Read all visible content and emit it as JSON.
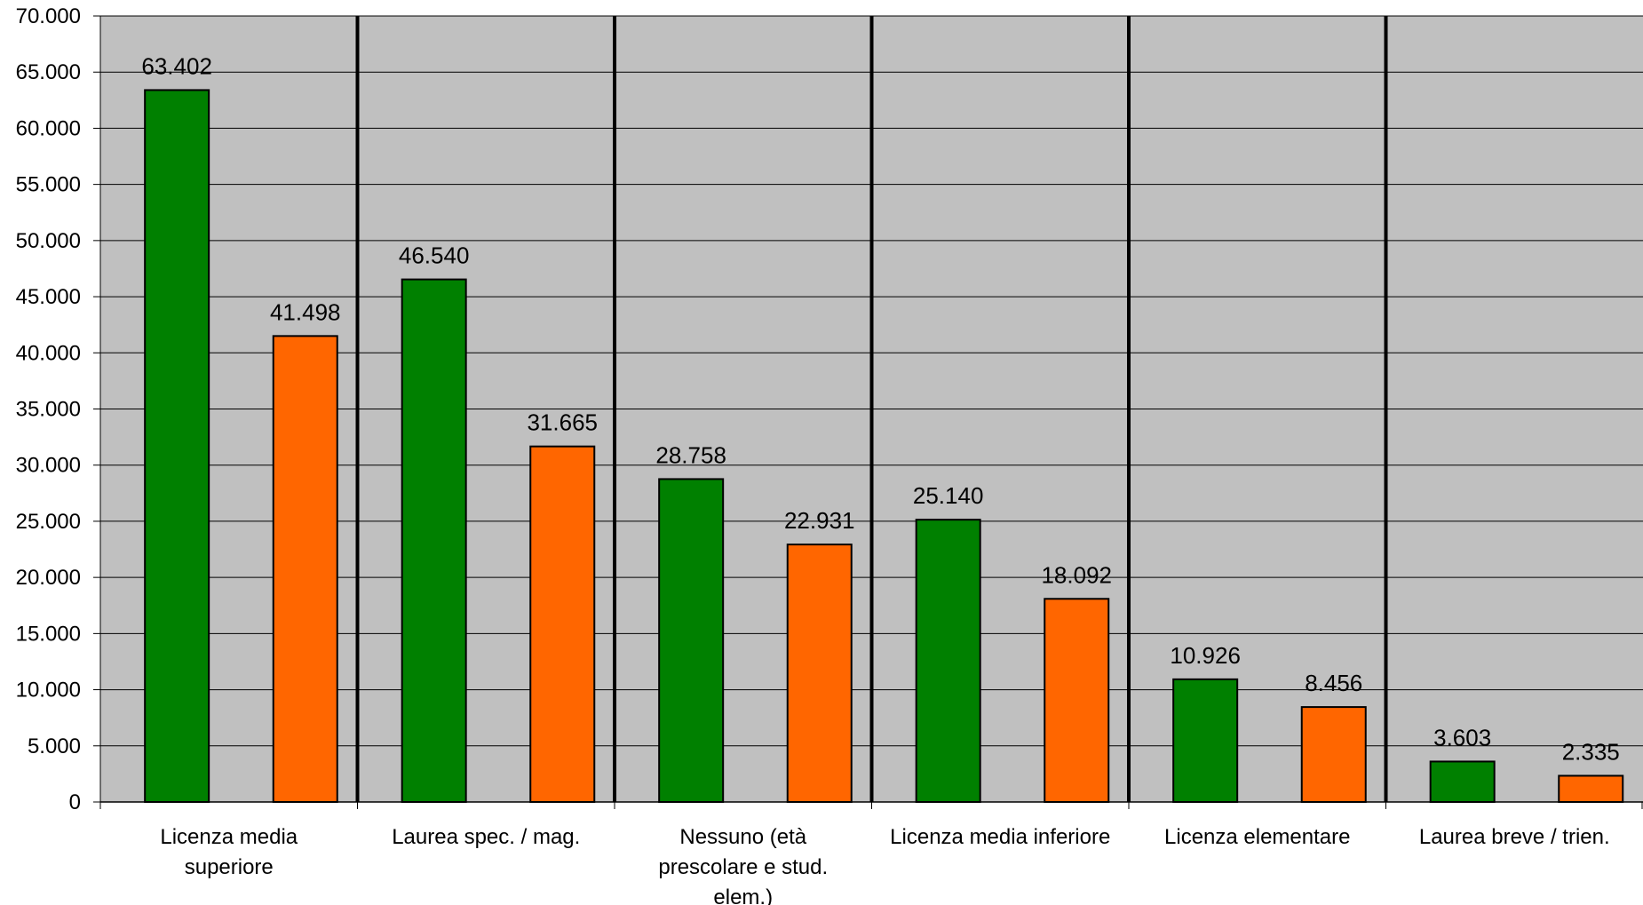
{
  "chart_data": {
    "type": "bar",
    "title": "",
    "xlabel": "",
    "ylabel": "",
    "ylim": [
      0,
      70000
    ],
    "ytick_step": 5000,
    "ytick_labels": [
      "0",
      "5.000",
      "10.000",
      "15.000",
      "20.000",
      "25.000",
      "30.000",
      "35.000",
      "40.000",
      "45.000",
      "50.000",
      "55.000",
      "60.000",
      "65.000",
      "70.000"
    ],
    "grid": true,
    "legend": "none",
    "categories": [
      [
        "Licenza media",
        "superiore"
      ],
      [
        "Laurea spec. / mag."
      ],
      [
        "Nessuno (età",
        "prescolare e stud.",
        "elem.)"
      ],
      [
        "Licenza media inferiore"
      ],
      [
        "Licenza elementare"
      ],
      [
        "Laurea breve / trien."
      ]
    ],
    "series": [
      {
        "color": "#008000",
        "values": [
          63402,
          46540,
          28758,
          25140,
          10926,
          3603
        ],
        "labels": [
          "63.402",
          "46.540",
          "28.758",
          "25.140",
          "10.926",
          "3.603"
        ]
      },
      {
        "color": "#FF6600",
        "values": [
          41498,
          31665,
          22931,
          18092,
          8456,
          2335
        ],
        "labels": [
          "41.498",
          "31.665",
          "22.931",
          "18.092",
          "8.456",
          "2.335"
        ]
      }
    ],
    "colors": {
      "plot_background": "#C0C0C0",
      "gridline": "#000000",
      "category_divider": "#000000"
    }
  }
}
